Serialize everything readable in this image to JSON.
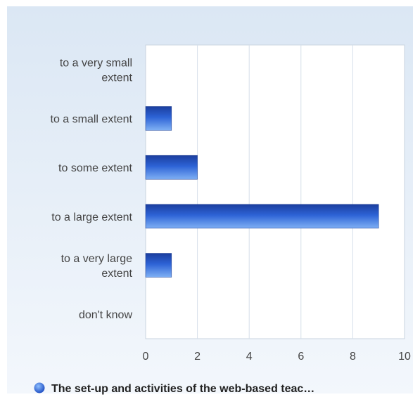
{
  "chart_data": {
    "type": "bar",
    "orientation": "horizontal",
    "categories": [
      [
        "to a very small",
        "extent"
      ],
      [
        "to a small extent"
      ],
      [
        "to some extent"
      ],
      [
        "to a large extent"
      ],
      [
        "to a very large",
        "extent"
      ],
      [
        "don't know"
      ]
    ],
    "series": [
      {
        "name": "The set-up and activities of the web-based teac…",
        "values": [
          0,
          1,
          2,
          9,
          1,
          0
        ]
      }
    ],
    "xlim": [
      0,
      10
    ],
    "xticks": [
      0,
      2,
      4,
      6,
      8,
      10
    ],
    "grid": true,
    "legend_position": "bottom",
    "colors": {
      "bar_dark": "#0d3aa8",
      "bar_light": "#7aaaf0",
      "grid": "#d6dfea",
      "frame_bg": "#eaf1f9"
    }
  }
}
